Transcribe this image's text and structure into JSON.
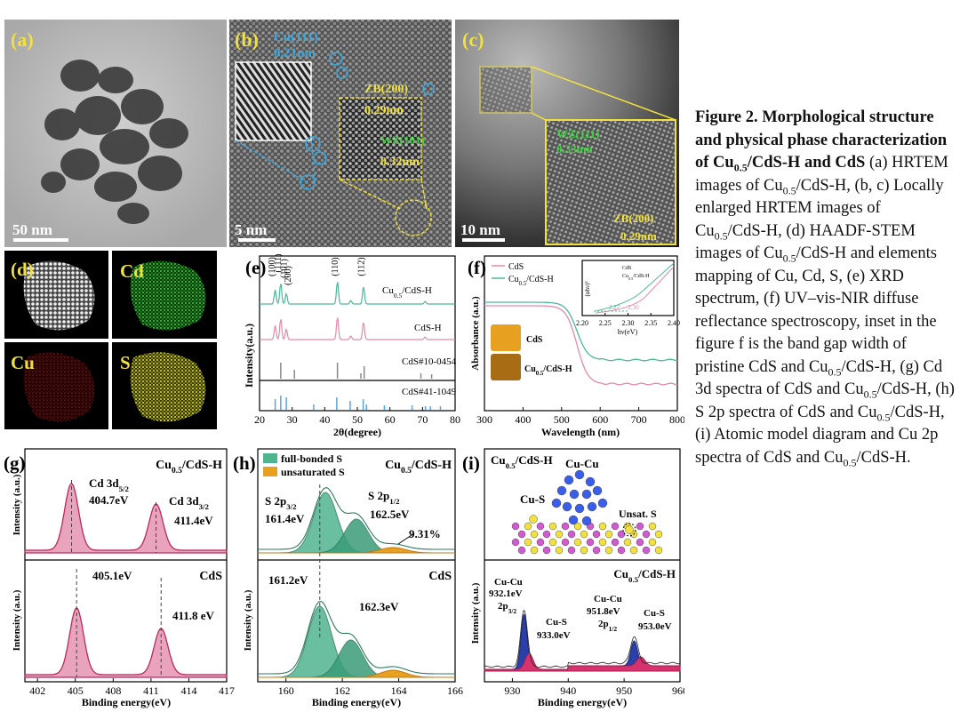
{
  "caption": {
    "bold": [
      "Figure 2. Morphological structure and physical phase characterization of Cu",
      "0.5",
      "/CdS-H and CdS"
    ],
    "body": [
      " (a) HRTEM images of Cu",
      "0.5",
      "/CdS-H, (b, c) Locally enlarged HRTEM images of Cu",
      "0.5",
      "/CdS-H, (d) HAADF-STEM images of Cu",
      "0.5",
      "/CdS-H and elements mapping of Cu, Cd, S, (e) XRD spectrum, (f) UV–vis-NIR diffuse reflectance spectroscopy, inset in the figure f is the band gap width of pristine CdS and Cu",
      "0.5",
      "/CdS-H, (g) Cd 3d spectra of CdS and Cu",
      "0.5",
      "/CdS-H, (h) S 2p spectra of CdS and Cu",
      "0.5",
      "/CdS-H, (i) Atomic model diagram and Cu 2p spectra of CdS and Cu",
      "0.5",
      "/CdS-H."
    ]
  },
  "panels": {
    "a": {
      "label": "(a)",
      "scale": "50 nm"
    },
    "b": {
      "label": "(b)",
      "scale": "5 nm",
      "notes": [
        "Cu(111)",
        "0.21nm",
        "ZB(200)",
        "0.29nm",
        "WZ(101)",
        "0.32nm"
      ]
    },
    "c": {
      "label": "(c)",
      "scale": "10 nm",
      "notes": [
        "WZ(111)",
        "0.33nm",
        "ZB(200)",
        "0.29nm"
      ]
    },
    "d": {
      "label": "(d)",
      "maps": [
        "Cd",
        "Cu",
        "S"
      ]
    },
    "e": {
      "label": "(e)",
      "xlabel": "2θ(degree)",
      "ylabel": "Intensity(a.u.)",
      "xticks": [
        20,
        30,
        40,
        50,
        60,
        70,
        80
      ],
      "peaks": [
        "(100)",
        "(111)",
        "(101)",
        "(200)",
        "(110)",
        "(112)"
      ],
      "curves": [
        [
          "Cu",
          "0.5",
          "/CdS-H"
        ],
        "CdS-H",
        "CdS#10-0454",
        "CdS#41-1049"
      ]
    },
    "f": {
      "label": "(f)",
      "xlabel": "Wavelength (nm)",
      "ylabel": "Absorbance (a.u.)",
      "xticks": [
        300,
        400,
        500,
        600,
        700,
        800
      ],
      "legend": [
        "CdS",
        [
          "Cu",
          "0.5",
          "/CdS-H"
        ]
      ],
      "inset": {
        "xticks": [
          "2.20",
          "2.25",
          "2.30",
          "2.35",
          "2.40"
        ],
        "xlabel": "hν(eV)",
        "ylabel": "(αhν)²",
        "legend": [
          "CdS",
          [
            "Cu",
            "0.5",
            "/CdS-H"
          ]
        ],
        "notes": [
          "2.27",
          "2.30"
        ]
      },
      "photos": [
        "CdS",
        [
          "Cu",
          "0.5",
          "/CdS-H"
        ]
      ]
    },
    "g": {
      "label": "(g)",
      "xlabel": "Binding energy(eV)",
      "ylabel": "Intensity (a.u.)",
      "xticks": [
        402,
        405,
        408,
        411,
        414,
        417
      ],
      "top": {
        "name": [
          "Cu",
          "0.5",
          "/CdS-H"
        ],
        "notes": [
          [
            "Cd 3d",
            "5/2"
          ],
          "404.7eV",
          [
            "Cd 3d",
            "3/2"
          ],
          "411.4eV"
        ]
      },
      "bottom": {
        "name": "CdS",
        "notes": [
          "405.1eV",
          "411.8 eV"
        ]
      }
    },
    "h": {
      "label": "(h)",
      "xlabel": "Binding energy(eV)",
      "ylabel": "Intensity (a.u.)",
      "xticks": [
        160,
        162,
        164,
        166
      ],
      "legend": [
        "full-bonded S",
        "unsaturated S"
      ],
      "top": {
        "name": [
          "Cu",
          "0.5",
          "/CdS-H"
        ],
        "notes": [
          [
            "S 2p",
            "3/2"
          ],
          "161.4eV",
          [
            "S 2p",
            "1/2"
          ],
          "162.5eV",
          "9.31%"
        ]
      },
      "bottom": {
        "name": "CdS",
        "notes": [
          "161.2eV",
          "162.3eV"
        ]
      }
    },
    "i": {
      "label": "(i)",
      "xlabel": "Binding energy(eV)",
      "ylabel": "Intensity (a.u.)",
      "xticks": [
        930,
        940,
        950,
        960
      ],
      "model": {
        "name": [
          "Cu",
          "0.5",
          "/CdS-H"
        ],
        "notes": [
          "Cu-Cu",
          "Cu-S",
          "Unsat. S"
        ]
      },
      "spectrum": {
        "name": [
          "Cu",
          "0.5",
          "/CdS-H"
        ],
        "notes": [
          "Cu-Cu",
          "932.1eV",
          [
            "2p",
            "3/2"
          ],
          "Cu-S",
          "933.0eV",
          "Cu-Cu",
          "951.8eV",
          [
            "2p",
            "1/2"
          ],
          "Cu-S",
          "953.0eV"
        ]
      }
    }
  }
}
